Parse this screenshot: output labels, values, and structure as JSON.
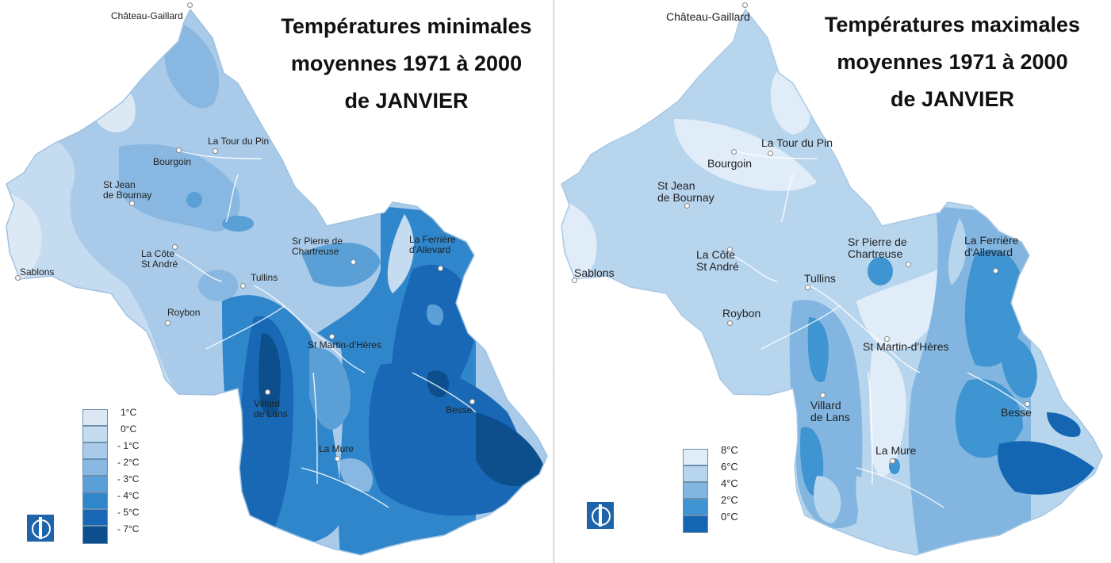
{
  "colors": {
    "l_p1": "#dce9f5",
    "l_0": "#c5dbef",
    "l_m1": "#a9cbe9",
    "l_m2": "#88b8e1",
    "l_m3": "#5aa0d7",
    "l_m4": "#2f86cb",
    "l_m5": "#1868b5",
    "l_m7": "#0c4f8c",
    "r_8": "#e0edf8",
    "r_6": "#b8d5ee",
    "r_4": "#82b6e1",
    "r_2": "#3f94d2",
    "r_0": "#1566b2",
    "logo": "#1f64a8"
  },
  "left_map": {
    "title_lines": [
      "Températures minimales",
      "moyennes 1971 à 2000",
      "de JANVIER"
    ],
    "towns": [
      {
        "name": "Château-Gaillard",
        "lines": [
          "Château-Gaillard"
        ]
      },
      {
        "name": "La Tour du Pin",
        "lines": [
          "La Tour du Pin"
        ]
      },
      {
        "name": "Bourgoin",
        "lines": [
          "Bourgoin"
        ]
      },
      {
        "name": "St Jean de Bournay",
        "lines": [
          "St Jean",
          "de Bournay"
        ]
      },
      {
        "name": "Sablons",
        "lines": [
          "Sablons"
        ]
      },
      {
        "name": "La Côte St André",
        "lines": [
          "La Côte",
          "St André"
        ]
      },
      {
        "name": "Tullins",
        "lines": [
          "Tullins"
        ]
      },
      {
        "name": "Sr Pierre de Chartreuse",
        "lines": [
          "Sr Pierre de",
          "Chartreuse"
        ]
      },
      {
        "name": "La Ferrière d'Allevard",
        "lines": [
          "La Ferrière",
          "d'Allevard"
        ]
      },
      {
        "name": "Roybon",
        "lines": [
          "Roybon"
        ]
      },
      {
        "name": "St Martin-d'Hères",
        "lines": [
          "St Martin-d'Hères"
        ]
      },
      {
        "name": "Villard de Lans",
        "lines": [
          "Villard",
          "de Lans"
        ]
      },
      {
        "name": "Besse",
        "lines": [
          "Besse"
        ]
      },
      {
        "name": "La Mure",
        "lines": [
          "La Mure"
        ]
      }
    ],
    "legend": [
      {
        "label": "1°C",
        "color": "#dce9f5"
      },
      {
        "label": "0°C",
        "color": "#c5dbef"
      },
      {
        "label": "- 1°C",
        "color": "#a9cbe9"
      },
      {
        "label": "- 2°C",
        "color": "#88b8e1"
      },
      {
        "label": "- 3°C",
        "color": "#5aa0d7"
      },
      {
        "label": "- 4°C",
        "color": "#2f86cb"
      },
      {
        "label": "- 5°C",
        "color": "#1868b5"
      },
      {
        "label": "- 7°C",
        "color": "#0c4f8c"
      }
    ]
  },
  "right_map": {
    "title_lines": [
      "Températures maximales",
      "moyennes 1971 à 2000",
      "de JANVIER"
    ],
    "towns": [
      {
        "name": "Château-Gaillard",
        "lines": [
          "Château-Gaillard"
        ]
      },
      {
        "name": "La Tour du Pin",
        "lines": [
          "La Tour du Pin"
        ]
      },
      {
        "name": "Bourgoin",
        "lines": [
          "Bourgoin"
        ]
      },
      {
        "name": "St Jean de Bournay",
        "lines": [
          "St Jean",
          "de Bournay"
        ]
      },
      {
        "name": "Sablons",
        "lines": [
          "Sablons"
        ]
      },
      {
        "name": "La Côte St André",
        "lines": [
          "La Côte",
          "St André"
        ]
      },
      {
        "name": "Tullins",
        "lines": [
          "Tullins"
        ]
      },
      {
        "name": "Sr Pierre de Chartreuse",
        "lines": [
          "Sr Pierre de",
          "Chartreuse"
        ]
      },
      {
        "name": "La Ferrière d'Allevard",
        "lines": [
          "La Ferrière",
          "d'Allevard"
        ]
      },
      {
        "name": "Roybon",
        "lines": [
          "Roybon"
        ]
      },
      {
        "name": "St Martin-d'Hères",
        "lines": [
          "St Martin-d'Hères"
        ]
      },
      {
        "name": "Villard de Lans",
        "lines": [
          "Villard",
          "de Lans"
        ]
      },
      {
        "name": "Besse",
        "lines": [
          "Besse"
        ]
      },
      {
        "name": "La Mure",
        "lines": [
          "La Mure"
        ]
      }
    ],
    "legend": [
      {
        "label": "8°C",
        "color": "#e0edf8"
      },
      {
        "label": "6°C",
        "color": "#b8d5ee"
      },
      {
        "label": "4°C",
        "color": "#82b6e1"
      },
      {
        "label": "2°C",
        "color": "#3f94d2"
      },
      {
        "label": "0°C",
        "color": "#1566b2"
      }
    ]
  }
}
